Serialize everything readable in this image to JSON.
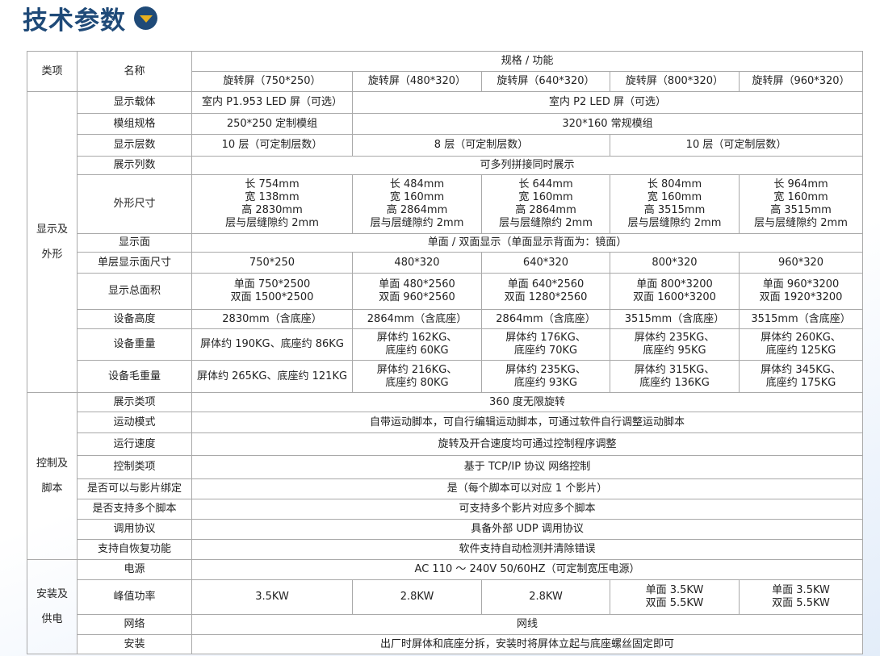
{
  "title": "技术参数",
  "colors": {
    "title": "#1f4a78",
    "icon_arrow": "#e8b01e",
    "border": "#a9a9a9"
  },
  "header": {
    "category": "类项",
    "name": "名称",
    "spec": "规格 / 功能",
    "models": [
      "旋转屏（750*250）",
      "旋转屏（480*320）",
      "旋转屏（640*320）",
      "旋转屏（800*320）",
      "旋转屏（960*320）"
    ]
  },
  "sections": [
    {
      "category": "显示及\n外形",
      "rows": [
        {
          "name": "显示载体",
          "values": [
            {
              "text": "室内 P1.953 LED 屏（可选）",
              "span": 1
            },
            {
              "text": "室内 P2 LED 屏（可选）",
              "span": 4
            }
          ]
        },
        {
          "name": "模组规格",
          "values": [
            {
              "text": "250*250 定制模组",
              "span": 1
            },
            {
              "text": "320*160 常规模组",
              "span": 4
            }
          ]
        },
        {
          "name": "显示层数",
          "values": [
            {
              "text": "10 层（可定制层数）",
              "span": 1
            },
            {
              "text": "8 层（可定制层数）",
              "span": 2
            },
            {
              "text": "10 层（可定制层数）",
              "span": 2
            }
          ]
        },
        {
          "name": "展示列数",
          "values": [
            {
              "text": "可多列拼接同时展示",
              "span": 5
            }
          ]
        },
        {
          "name": "外形尺寸",
          "values": [
            {
              "text": "长 754mm\n宽 138mm\n高 2830mm\n层与层缝隙约 2mm",
              "span": 1
            },
            {
              "text": "长 484mm\n宽 160mm\n高 2864mm\n层与层缝隙约 2mm",
              "span": 1
            },
            {
              "text": "长 644mm\n宽 160mm\n高 2864mm\n层与层缝隙约 2mm",
              "span": 1
            },
            {
              "text": "长 804mm\n宽 160mm\n高 3515mm\n层与层缝隙约 2mm",
              "span": 1
            },
            {
              "text": "长 964mm\n宽 160mm\n高 3515mm\n层与层缝隙约 2mm",
              "span": 1
            }
          ]
        },
        {
          "name": "显示面",
          "values": [
            {
              "text": "单面 / 双面显示（单面显示背面为：镜面）",
              "span": 5
            }
          ]
        },
        {
          "name": "单层显示面尺寸",
          "values": [
            {
              "text": "750*250",
              "span": 1
            },
            {
              "text": "480*320",
              "span": 1
            },
            {
              "text": "640*320",
              "span": 1
            },
            {
              "text": "800*320",
              "span": 1
            },
            {
              "text": "960*320",
              "span": 1
            }
          ]
        },
        {
          "name": "显示总面积",
          "values": [
            {
              "text": "单面 750*2500\n双面 1500*2500",
              "span": 1
            },
            {
              "text": "单面 480*2560\n双面 960*2560",
              "span": 1
            },
            {
              "text": "单面 640*2560\n双面 1280*2560",
              "span": 1
            },
            {
              "text": "单面 800*3200\n双面 1600*3200",
              "span": 1
            },
            {
              "text": "单面 960*3200\n双面 1920*3200",
              "span": 1
            }
          ]
        },
        {
          "name": "设备高度",
          "values": [
            {
              "text": "2830mm（含底座）",
              "span": 1
            },
            {
              "text": "2864mm（含底座）",
              "span": 1
            },
            {
              "text": "2864mm（含底座）",
              "span": 1
            },
            {
              "text": "3515mm（含底座）",
              "span": 1
            },
            {
              "text": "3515mm（含底座）",
              "span": 1
            }
          ]
        },
        {
          "name": "设备重量",
          "values": [
            {
              "text": "屏体约 190KG、底座约 86KG",
              "span": 1
            },
            {
              "text": "屏体约 162KG、\n底座约 60KG",
              "span": 1
            },
            {
              "text": "屏体约 176KG、\n底座约 70KG",
              "span": 1
            },
            {
              "text": "屏体约 235KG、\n底座约 95KG",
              "span": 1
            },
            {
              "text": "屏体约 260KG、\n底座约 125KG",
              "span": 1
            }
          ]
        },
        {
          "name": "设备毛重量",
          "values": [
            {
              "text": "屏体约 265KG、底座约 121KG",
              "span": 1
            },
            {
              "text": "屏体约 216KG、\n底座约 80KG",
              "span": 1
            },
            {
              "text": "屏体约 235KG、\n底座约 93KG",
              "span": 1
            },
            {
              "text": "屏体约 315KG、\n底座约 136KG",
              "span": 1
            },
            {
              "text": "屏体约 345KG、\n底座约 175KG",
              "span": 1
            }
          ]
        }
      ]
    },
    {
      "category": "控制及\n脚本",
      "rows": [
        {
          "name": "展示类项",
          "values": [
            {
              "text": "360 度无限旋转",
              "span": 5
            }
          ]
        },
        {
          "name": "运动模式",
          "values": [
            {
              "text": "自带运动脚本，可自行编辑运动脚本，可通过软件自行调整运动脚本",
              "span": 5
            }
          ]
        },
        {
          "name": "运行速度",
          "values": [
            {
              "text": "旋转及开合速度均可通过控制程序调整",
              "span": 5
            }
          ]
        },
        {
          "name": "控制类项",
          "values": [
            {
              "text": "基于 TCP/IP 协议 网络控制",
              "span": 5
            }
          ]
        },
        {
          "name": "是否可以与影片绑定",
          "values": [
            {
              "text": "是（每个脚本可以对应 1 个影片）",
              "span": 5
            }
          ]
        },
        {
          "name": "是否支持多个脚本",
          "values": [
            {
              "text": "可支持多个影片对应多个脚本",
              "span": 5
            }
          ]
        },
        {
          "name": "调用协议",
          "values": [
            {
              "text": "具备外部 UDP 调用协议",
              "span": 5
            }
          ]
        },
        {
          "name": "支持自恢复功能",
          "values": [
            {
              "text": "软件支持自动检测并清除错误",
              "span": 5
            }
          ]
        }
      ]
    },
    {
      "category": "安装及\n供电",
      "rows": [
        {
          "name": "电源",
          "values": [
            {
              "text": "AC 110 ～ 240V 50/60HZ（可定制宽压电源）",
              "span": 5
            }
          ]
        },
        {
          "name": "峰值功率",
          "values": [
            {
              "text": "3.5KW",
              "span": 1
            },
            {
              "text": "2.8KW",
              "span": 1
            },
            {
              "text": "2.8KW",
              "span": 1
            },
            {
              "text": "单面 3.5KW\n双面 5.5KW",
              "span": 1
            },
            {
              "text": "单面 3.5KW\n双面 5.5KW",
              "span": 1
            }
          ]
        },
        {
          "name": "网络",
          "values": [
            {
              "text": "网线",
              "span": 5
            }
          ]
        },
        {
          "name": "安装",
          "values": [
            {
              "text": "出厂时屏体和底座分拆，安装时将屏体立起与底座螺丝固定即可",
              "span": 5
            }
          ]
        }
      ]
    }
  ]
}
